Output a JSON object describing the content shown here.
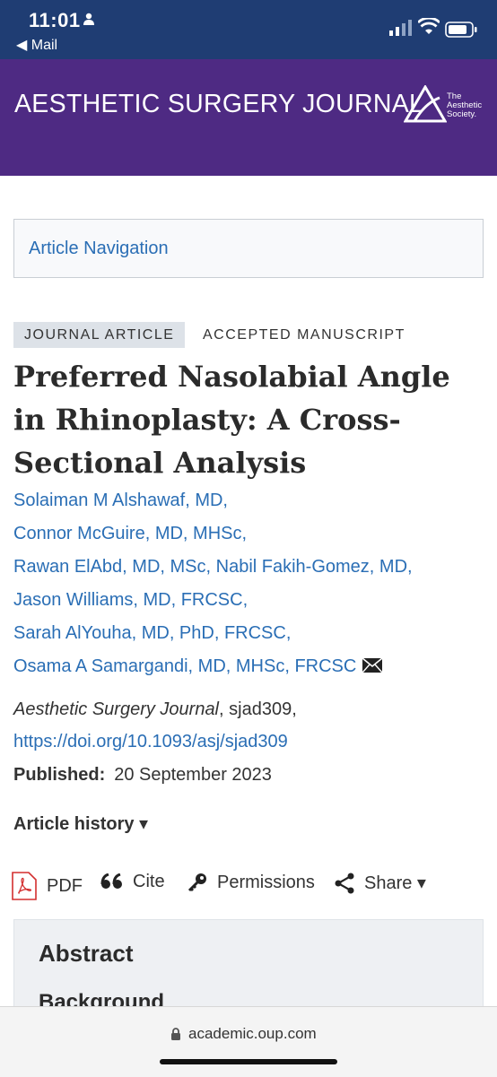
{
  "status": {
    "time": "11:01",
    "back_label": "◀ Mail"
  },
  "journal": {
    "title": "AESTHETIC SURGERY JOURNAL",
    "society_lines": [
      "The",
      "Aesthetic",
      "Society."
    ]
  },
  "nav": {
    "label": "Article Navigation"
  },
  "tags": {
    "type": "JOURNAL ARTICLE",
    "status": "ACCEPTED MANUSCRIPT"
  },
  "article": {
    "title": "Preferred Nasolabial Angle in Rhinoplasty: A Cross-Sectional Analysis",
    "authors": [
      "Solaiman M Alshawaf, MD",
      "Connor McGuire, MD, MHSc",
      "Rawan ElAbd, MD, MSc",
      "Nabil Fakih-Gomez, MD",
      "Jason Williams, MD, FRCSC",
      "Sarah AlYouha, MD, PhD, FRCSC",
      "Osama A Samargandi, MD, MHSc, FRCSC"
    ],
    "journal_name": "Aesthetic Surgery Journal",
    "article_id": ", sjad309,",
    "doi": "https://doi.org/10.1093/asj/sjad309",
    "published_label": "Published:",
    "published_date": "20 September 2023",
    "history_label": "Article history ▾"
  },
  "tools": {
    "pdf": "PDF",
    "cite": "Cite",
    "permissions": "Permissions",
    "share": "Share ▾"
  },
  "abstract": {
    "heading": "Abstract",
    "subheading": "Background"
  },
  "browser": {
    "url": "academic.oup.com"
  }
}
